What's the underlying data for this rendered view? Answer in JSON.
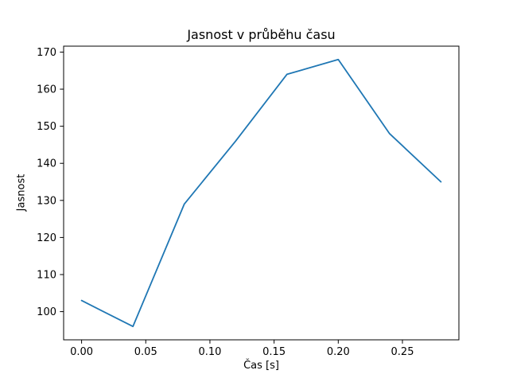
{
  "chart_data": {
    "type": "line",
    "title": "Jasnost v průběhu času",
    "xlabel": "Čas [s]",
    "ylabel": "Jasnost",
    "x": [
      0.0,
      0.04,
      0.08,
      0.12,
      0.16,
      0.2,
      0.24,
      0.28
    ],
    "y": [
      103,
      96,
      129,
      146,
      164,
      168,
      148,
      135
    ],
    "xlim": [
      -0.014,
      0.294
    ],
    "ylim": [
      92.4,
      171.6
    ],
    "xticks": {
      "values": [
        0.0,
        0.05,
        0.1,
        0.15,
        0.2,
        0.25
      ],
      "labels": [
        "0.00",
        "0.05",
        "0.10",
        "0.15",
        "0.20",
        "0.25"
      ]
    },
    "yticks": {
      "values": [
        100,
        110,
        120,
        130,
        140,
        150,
        160,
        170
      ],
      "labels": [
        "100",
        "110",
        "120",
        "130",
        "140",
        "150",
        "160",
        "170"
      ]
    },
    "line_color": "#1f77b4",
    "axis_color": "#000000",
    "background_color": "#ffffff",
    "grid": false,
    "legend": "none",
    "series_count": 1
  }
}
